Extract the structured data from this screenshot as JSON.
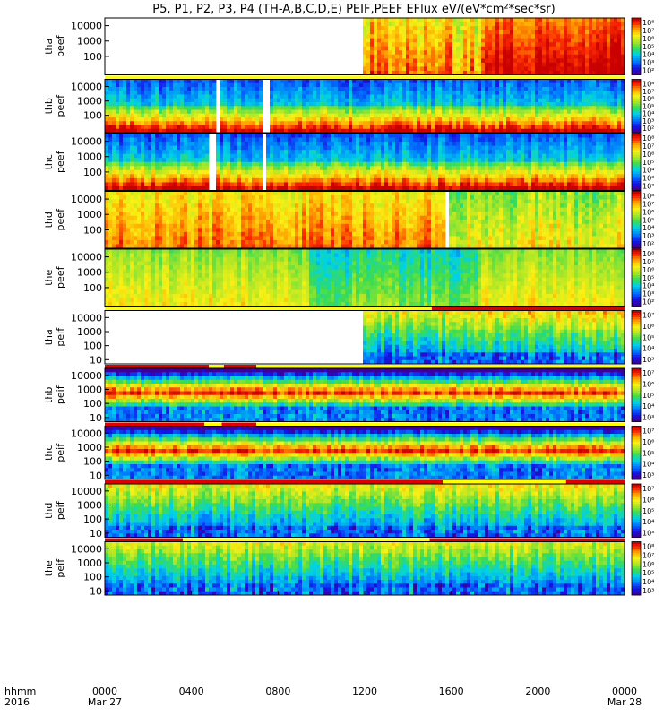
{
  "chart_data": {
    "type": "heatmap",
    "title": "P5, P1, P2, P3, P4 (TH-A,B,C,D,E) PEIF,PEEF EFlux eV/(eV*cm²*sec*sr)",
    "x_axis": {
      "row1_label": "hhmm",
      "row2_label": "2016",
      "ticks": [
        "0000",
        "0400",
        "0800",
        "1200",
        "1600",
        "2000",
        "0000"
      ],
      "date_labels": [
        "Mar 27",
        "Mar 28"
      ],
      "range_hours": [
        0,
        24
      ]
    },
    "panels": [
      {
        "id": "tha-peef",
        "ylabel": [
          "tha",
          "peef"
        ],
        "species": "electron",
        "yticks": [
          "10000",
          "1000",
          "100"
        ],
        "yrange_log": [
          0.8,
          4.5
        ],
        "colorbar": {
          "ticks": [
            "10⁸",
            "10⁷",
            "10⁶",
            "10⁵",
            "10⁴",
            "10³",
            "10²"
          ],
          "log_range": [
            1.5,
            8.5
          ]
        },
        "bands": [],
        "segments": [
          {
            "start_h": 11.9,
            "end_h": 16.0,
            "base": 0.8,
            "jitter": 0.12
          },
          {
            "start_h": 16.0,
            "end_h": 17.5,
            "base": 0.75,
            "jitter": 0.15
          },
          {
            "start_h": 17.5,
            "end_h": 24.0,
            "base": 0.93,
            "jitter": 0.08
          }
        ]
      },
      {
        "id": "thb-peef",
        "ylabel": [
          "thb",
          "peef"
        ],
        "species": "electron",
        "yticks": [
          "10000",
          "1000",
          "100"
        ],
        "yrange_log": [
          0.8,
          4.5
        ],
        "colorbar": {
          "ticks": [
            "10⁸",
            "10⁷",
            "10⁶",
            "10⁵",
            "10⁴",
            "10³",
            "10²"
          ],
          "log_range": [
            1.5,
            8.5
          ]
        },
        "bands": [
          {
            "start_h": 0,
            "end_h": 24,
            "color": "#ffff00"
          }
        ],
        "segments": [
          {
            "start_h": 0,
            "end_h": 24,
            "base": 0.5,
            "jitter": 0.1,
            "profile": "high_low"
          }
        ],
        "gaps": [
          {
            "start_h": 5.05,
            "end_h": 5.35
          },
          {
            "start_h": 7.25,
            "end_h": 7.55
          }
        ]
      },
      {
        "id": "thc-peef",
        "ylabel": [
          "thc",
          "peef"
        ],
        "species": "electron",
        "yticks": [
          "10000",
          "1000",
          "100"
        ],
        "yrange_log": [
          0.8,
          4.5
        ],
        "colorbar": {
          "ticks": [
            "10⁸",
            "10⁷",
            "10⁶",
            "10⁵",
            "10⁴",
            "10³",
            "10²"
          ],
          "log_range": [
            1.5,
            8.5
          ]
        },
        "bands": [],
        "segments": [
          {
            "start_h": 0,
            "end_h": 24,
            "base": 0.5,
            "jitter": 0.1,
            "profile": "high_low"
          }
        ],
        "gaps": [
          {
            "start_h": 4.85,
            "end_h": 5.15
          },
          {
            "start_h": 7.2,
            "end_h": 7.5
          }
        ]
      },
      {
        "id": "thd-peef",
        "ylabel": [
          "thd",
          "peef"
        ],
        "species": "electron",
        "yticks": [
          "10000",
          "1000",
          "100"
        ],
        "yrange_log": [
          0.8,
          4.5
        ],
        "colorbar": {
          "ticks": [
            "10⁸",
            "10⁷",
            "10⁶",
            "10⁵",
            "10⁴",
            "10³",
            "10²"
          ],
          "log_range": [
            1.5,
            8.5
          ]
        },
        "bands": [],
        "segments": [
          {
            "start_h": 0,
            "end_h": 15.8,
            "base": 0.78,
            "jitter": 0.1
          },
          {
            "start_h": 15.8,
            "end_h": 24,
            "base": 0.62,
            "jitter": 0.12
          }
        ],
        "gaps": [
          {
            "start_h": 15.75,
            "end_h": 15.9
          }
        ]
      },
      {
        "id": "the-peef",
        "ylabel": [
          "the",
          "peef"
        ],
        "species": "electron",
        "yticks": [
          "10000",
          "1000",
          "100"
        ],
        "yrange_log": [
          0.8,
          4.5
        ],
        "colorbar": {
          "ticks": [
            "10⁸",
            "10⁷",
            "10⁶",
            "10⁵",
            "10⁴",
            "10³",
            "10²"
          ],
          "log_range": [
            1.5,
            8.5
          ]
        },
        "bands": [],
        "segments": [
          {
            "start_h": 0,
            "end_h": 9.5,
            "base": 0.62,
            "jitter": 0.08
          },
          {
            "start_h": 9.5,
            "end_h": 17.2,
            "base": 0.45,
            "jitter": 0.1
          },
          {
            "start_h": 17.2,
            "end_h": 24,
            "base": 0.62,
            "jitter": 0.08
          }
        ]
      },
      {
        "id": "tha-peif",
        "ylabel": [
          "tha",
          "peif"
        ],
        "species": "ion",
        "yticks": [
          "10000",
          "1000",
          "100",
          "10"
        ],
        "yrange_log": [
          0.7,
          4.5
        ],
        "colorbar": {
          "ticks": [
            "10⁷",
            "10⁶",
            "10⁵",
            "10⁴",
            "10³"
          ],
          "log_range": [
            2.5,
            7.5
          ]
        },
        "bands": [
          {
            "start_h": 0,
            "end_h": 15.1,
            "color": "#ffff00"
          },
          {
            "start_h": 15.1,
            "end_h": 24,
            "color": "#dd0000"
          }
        ],
        "segments": [
          {
            "start_h": 11.9,
            "end_h": 16.0,
            "base": 0.5,
            "jitter": 0.12,
            "profile": "ion"
          },
          {
            "start_h": 16.0,
            "end_h": 24,
            "base": 0.55,
            "jitter": 0.12,
            "profile": "ion"
          }
        ]
      },
      {
        "id": "thb-peif",
        "ylabel": [
          "thb",
          "peif"
        ],
        "species": "ion",
        "yticks": [
          "10000",
          "1000",
          "100",
          "10"
        ],
        "yrange_log": [
          0.7,
          4.5
        ],
        "colorbar": {
          "ticks": [
            "10⁷",
            "10⁶",
            "10⁵",
            "10⁴",
            "10³"
          ],
          "log_range": [
            2.5,
            7.5
          ]
        },
        "bands": [
          {
            "start_h": 0,
            "end_h": 4.8,
            "color": "#dd0000"
          },
          {
            "start_h": 4.8,
            "end_h": 5.5,
            "color": "#ffff00"
          },
          {
            "start_h": 5.5,
            "end_h": 7.0,
            "color": "#dd0000"
          },
          {
            "start_h": 7.0,
            "end_h": 24,
            "color": "#ffff00"
          }
        ],
        "segments": [
          {
            "start_h": 0,
            "end_h": 24,
            "base": 0.5,
            "jitter": 0.1,
            "profile": "ion_band"
          }
        ]
      },
      {
        "id": "thc-peif",
        "ylabel": [
          "thc",
          "peif"
        ],
        "species": "ion",
        "yticks": [
          "10000",
          "1000",
          "100",
          "10"
        ],
        "yrange_log": [
          0.7,
          4.5
        ],
        "colorbar": {
          "ticks": [
            "10⁷",
            "10⁶",
            "10⁵",
            "10⁴",
            "10³"
          ],
          "log_range": [
            2.5,
            7.5
          ]
        },
        "bands": [
          {
            "start_h": 0,
            "end_h": 4.6,
            "color": "#dd0000"
          },
          {
            "start_h": 4.6,
            "end_h": 5.4,
            "color": "#ffff00"
          },
          {
            "start_h": 5.4,
            "end_h": 7.0,
            "color": "#dd0000"
          },
          {
            "start_h": 7.0,
            "end_h": 24,
            "color": "#ffff00"
          }
        ],
        "segments": [
          {
            "start_h": 0,
            "end_h": 24,
            "base": 0.5,
            "jitter": 0.1,
            "profile": "ion_band"
          }
        ]
      },
      {
        "id": "thd-peif",
        "ylabel": [
          "thd",
          "peif"
        ],
        "species": "ion",
        "yticks": [
          "10000",
          "1000",
          "100",
          "10"
        ],
        "yrange_log": [
          0.7,
          4.5
        ],
        "colorbar": {
          "ticks": [
            "10⁷",
            "10⁶",
            "10⁵",
            "10⁴",
            "10³"
          ],
          "log_range": [
            2.5,
            7.5
          ]
        },
        "bands": [
          {
            "start_h": 0,
            "end_h": 15.6,
            "color": "#dd0000"
          },
          {
            "start_h": 15.6,
            "end_h": 21.3,
            "color": "#ffff00"
          },
          {
            "start_h": 21.3,
            "end_h": 24,
            "color": "#dd0000"
          }
        ],
        "segments": [
          {
            "start_h": 0,
            "end_h": 24,
            "base": 0.5,
            "jitter": 0.12,
            "profile": "ion"
          }
        ]
      },
      {
        "id": "the-peif",
        "ylabel": [
          "the",
          "peif"
        ],
        "species": "ion",
        "yticks": [
          "10000",
          "1000",
          "100",
          "10"
        ],
        "yrange_log": [
          0.7,
          4.5
        ],
        "colorbar": {
          "ticks": [
            "10⁸",
            "10⁷",
            "10⁶",
            "10⁵",
            "10⁴",
            "10³"
          ],
          "log_range": [
            2.5,
            8.5
          ]
        },
        "bands": [
          {
            "start_h": 0,
            "end_h": 3.6,
            "color": "#dd0000"
          },
          {
            "start_h": 3.6,
            "end_h": 15.0,
            "color": "#ffff00"
          },
          {
            "start_h": 15.0,
            "end_h": 24,
            "color": "#dd0000"
          }
        ],
        "segments": [
          {
            "start_h": 0,
            "end_h": 24,
            "base": 0.48,
            "jitter": 0.12,
            "profile": "ion"
          }
        ]
      }
    ]
  }
}
